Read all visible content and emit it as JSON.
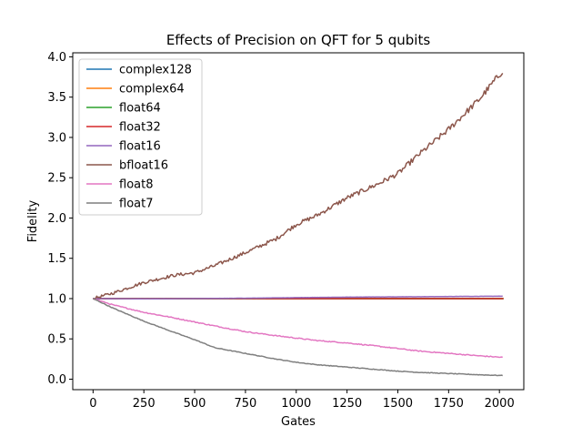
{
  "chart_data": {
    "type": "line",
    "title": "Effects of Precision on QFT for 5 qubits",
    "xlabel": "Gates",
    "ylabel": "Fidelity",
    "xlim": [
      -100,
      2120
    ],
    "ylim": [
      -0.13,
      4.05
    ],
    "xticks": [
      0,
      250,
      500,
      750,
      1000,
      1250,
      1500,
      1750,
      2000
    ],
    "yticks": [
      0.0,
      0.5,
      1.0,
      1.5,
      2.0,
      2.5,
      3.0,
      3.5,
      4.0
    ],
    "xtick_labels": [
      "0",
      "250",
      "500",
      "750",
      "1000",
      "1250",
      "1500",
      "1750",
      "2000"
    ],
    "ytick_labels": [
      "0.0",
      "0.5",
      "1.0",
      "1.5",
      "2.0",
      "2.5",
      "3.0",
      "3.5",
      "4.0"
    ],
    "grid": false,
    "legend_position": "top-left",
    "series": [
      {
        "name": "complex128",
        "color": "#1f77b4",
        "x": [
          0,
          2020
        ],
        "y": [
          1.0,
          1.0
        ]
      },
      {
        "name": "complex64",
        "color": "#ff7f0e",
        "x": [
          0,
          2020
        ],
        "y": [
          1.0,
          1.0
        ]
      },
      {
        "name": "float64",
        "color": "#2ca02c",
        "x": [
          0,
          2020
        ],
        "y": [
          1.0,
          1.0
        ]
      },
      {
        "name": "float32",
        "color": "#d62728",
        "x": [
          0,
          2020
        ],
        "y": [
          1.0,
          1.0
        ]
      },
      {
        "name": "float16",
        "color": "#9467bd",
        "x": [
          0,
          250,
          500,
          750,
          1000,
          1250,
          1500,
          1750,
          2020
        ],
        "y": [
          1.0,
          0.997,
          1.0,
          1.005,
          1.012,
          1.018,
          1.022,
          1.026,
          1.03
        ]
      },
      {
        "name": "bfloat16",
        "color": "#8c564b",
        "x": [
          0,
          100,
          250,
          400,
          500,
          600,
          750,
          900,
          1000,
          1100,
          1250,
          1400,
          1500,
          1600,
          1750,
          1900,
          2020
        ],
        "y": [
          1.0,
          1.07,
          1.2,
          1.29,
          1.32,
          1.41,
          1.57,
          1.74,
          1.92,
          2.03,
          2.25,
          2.42,
          2.55,
          2.78,
          3.1,
          3.47,
          3.84
        ]
      },
      {
        "name": "float8",
        "color": "#e377c2",
        "x": [
          0,
          100,
          250,
          400,
          500,
          600,
          750,
          900,
          1000,
          1100,
          1250,
          1400,
          1500,
          1600,
          1750,
          1900,
          2020
        ],
        "y": [
          1.0,
          0.92,
          0.83,
          0.76,
          0.71,
          0.66,
          0.59,
          0.54,
          0.51,
          0.48,
          0.45,
          0.41,
          0.38,
          0.35,
          0.32,
          0.29,
          0.27
        ]
      },
      {
        "name": "float7",
        "color": "#7f7f7f",
        "x": [
          0,
          100,
          250,
          400,
          500,
          600,
          750,
          900,
          1000,
          1100,
          1250,
          1400,
          1500,
          1600,
          1750,
          1900,
          2020
        ],
        "y": [
          1.0,
          0.88,
          0.72,
          0.58,
          0.49,
          0.39,
          0.32,
          0.25,
          0.21,
          0.18,
          0.15,
          0.12,
          0.1,
          0.085,
          0.07,
          0.055,
          0.045
        ]
      }
    ]
  }
}
